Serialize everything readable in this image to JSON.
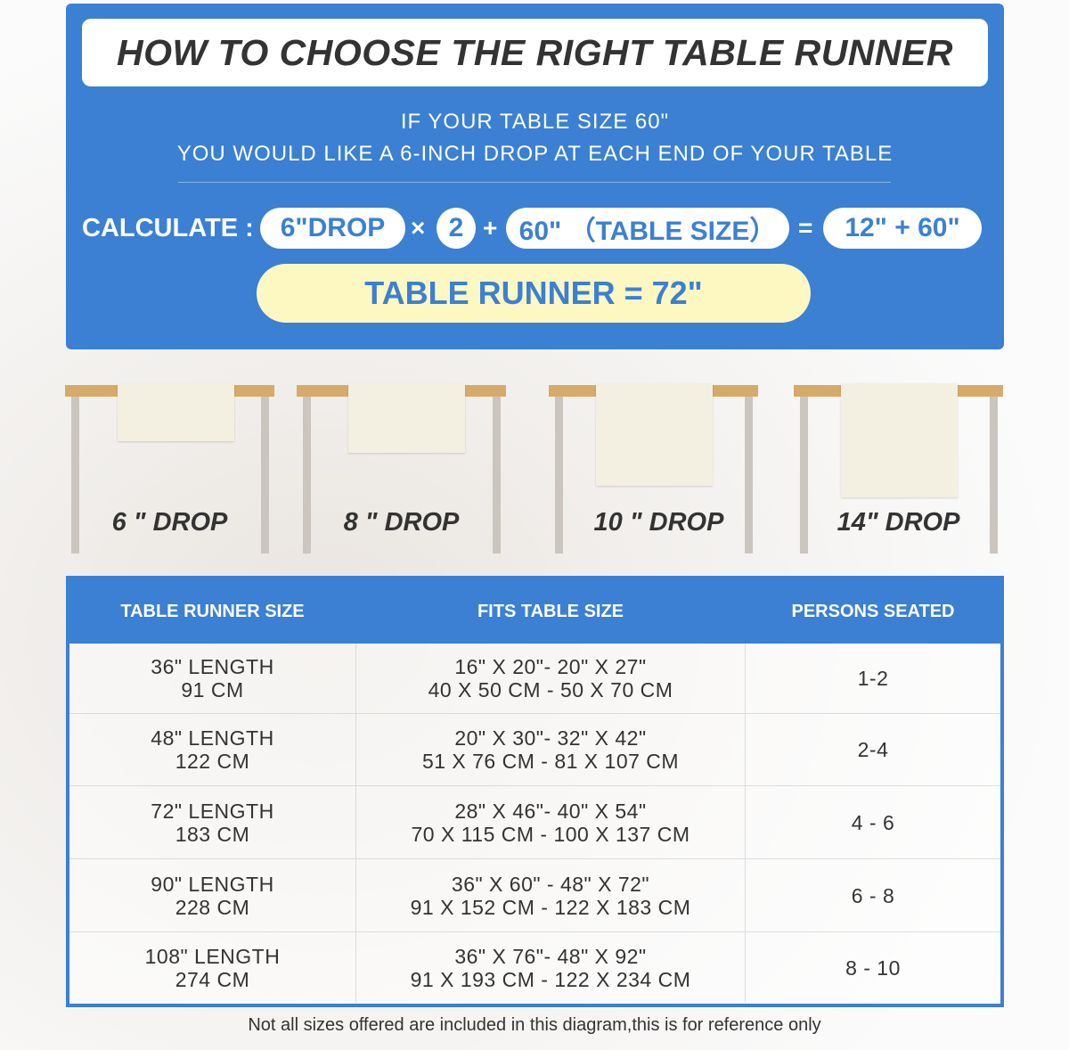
{
  "title": "HOW TO CHOOSE THE RIGHT TABLE RUNNER",
  "intro": [
    "IF YOUR TABLE SIZE 60\"",
    "YOU WOULD LIKE A 6-INCH DROP AT EACH END OF YOUR TABLE"
  ],
  "calculation": {
    "label": "CALCULATE :",
    "drop": "6\"DROP",
    "times": "×",
    "multiplier": "2",
    "plus": "+",
    "table_size": "60\" （TABLE SIZE）",
    "equals": "=",
    "sum": "12\" + 60\"",
    "result": "TABLE RUNNER = 72\""
  },
  "drops": [
    "6 \" DROP",
    "8 \" DROP",
    "10 \" DROP",
    "14\" DROP"
  ],
  "colors": {
    "accent": "#3b80d2",
    "result_bg": "#fdf8c2",
    "tabletop": "#d6aa6b",
    "runner": "#f3efe1"
  },
  "table": {
    "headers": [
      "TABLE RUNNER SIZE",
      "FITS TABLE SIZE",
      "PERSONS SEATED"
    ],
    "rows": [
      {
        "size": [
          "36\" LENGTH",
          "91 CM"
        ],
        "fits": [
          "16\" X 20\"- 20\" X 27\"",
          "40 X 50 CM - 50 X 70 CM"
        ],
        "persons": "1-2"
      },
      {
        "size": [
          "48\" LENGTH",
          "122 CM"
        ],
        "fits": [
          "20\" X 30\"- 32\" X 42\"",
          "51 X 76 CM - 81 X 107 CM"
        ],
        "persons": "2-4"
      },
      {
        "size": [
          "72\" LENGTH",
          "183 CM"
        ],
        "fits": [
          "28\" X 46\"- 40\" X 54\"",
          "70 X 115 CM - 100 X 137 CM"
        ],
        "persons": "4 - 6"
      },
      {
        "size": [
          "90\" LENGTH",
          "228 CM"
        ],
        "fits": [
          "36\" X 60\" - 48\" X 72\"",
          "91 X 152 CM - 122 X 183 CM"
        ],
        "persons": "6 - 8"
      },
      {
        "size": [
          "108\" LENGTH",
          "274 CM"
        ],
        "fits": [
          "36\" X 76\"- 48\" X 92\"",
          "91 X 193 CM - 122 X 234 CM"
        ],
        "persons": "8 - 10"
      }
    ]
  },
  "note": "Not all sizes offered are included in this diagram,this is for reference only"
}
